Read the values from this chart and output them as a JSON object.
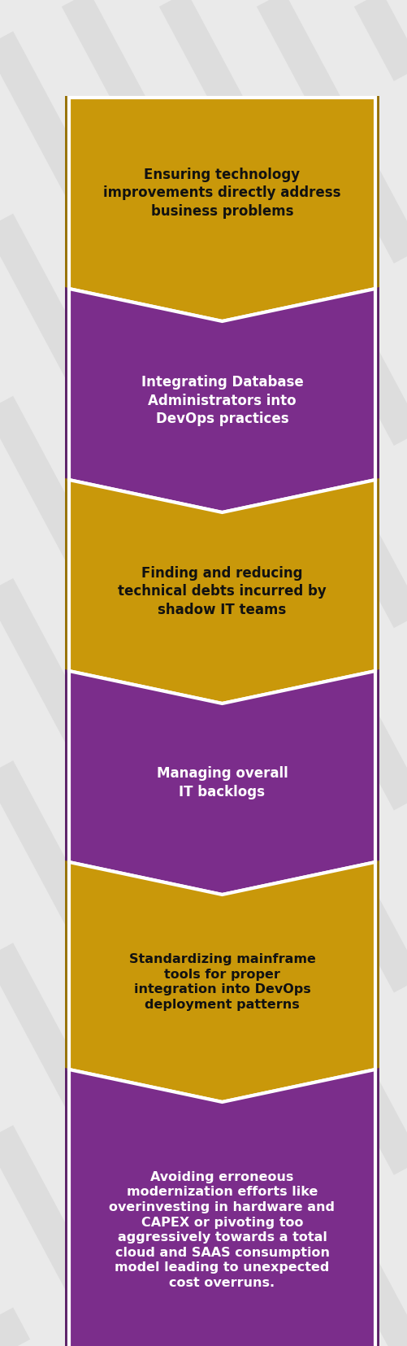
{
  "background_color": "#eaeaea",
  "stripe_color": "#d8d8d8",
  "chevron_colors": [
    "#C9980A",
    "#7B2D8B",
    "#C9980A",
    "#7B2D8B",
    "#C9980A",
    "#7B2D8B"
  ],
  "text_colors": [
    "#111111",
    "#ffffff",
    "#111111",
    "#ffffff",
    "#111111",
    "#ffffff"
  ],
  "labels": [
    "Ensuring technology\nimprovements directly address\nbusiness problems",
    "Integrating Database\nAdministrators into\nDevOps practices",
    "Finding and reducing\ntechnical debts incurred by\nshadow IT teams",
    "Managing overall\nIT backlogs",
    "Standardizing mainframe\ntools for proper\nintegration into DevOps\ndeployment patterns",
    "Avoiding erroneous\nmodernization efforts like\noverinvesting in hardware and\nCAPEX or pivoting too\naggressively towards a total\ncloud and SAAS consumption\nmodel leading to unexpected\ncost overruns."
  ],
  "fig_width": 5.01,
  "fig_height": 16.55,
  "dpi": 100
}
